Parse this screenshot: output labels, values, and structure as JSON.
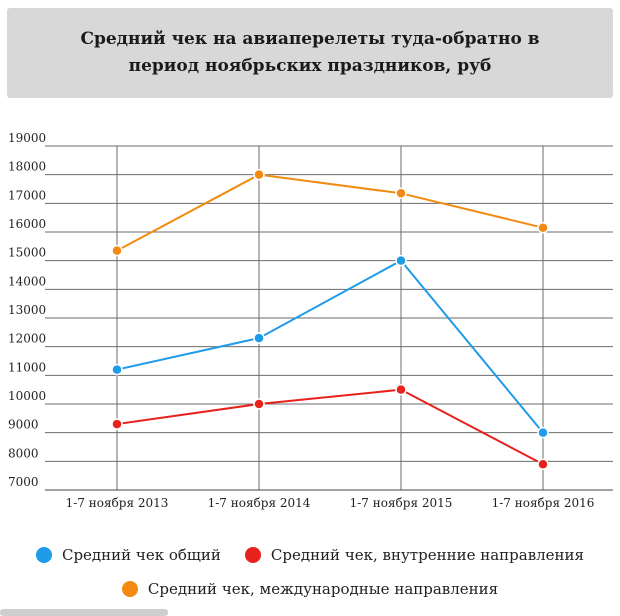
{
  "chart_data": {
    "type": "line",
    "title": "Средний чек на авиаперелеты туда-обратно в период ноябрьских праздников, руб",
    "categories": [
      "1-7 ноября 2013",
      "1-7 ноября 2014",
      "1-7 ноября 2015",
      "1-7 ноября 2016"
    ],
    "ylim": [
      7000,
      19000
    ],
    "yticks": [
      7000,
      8000,
      9000,
      10000,
      11000,
      12000,
      13000,
      14000,
      15000,
      16000,
      17000,
      18000,
      19000
    ],
    "grid": true,
    "legend_position": "bottom",
    "series": [
      {
        "name": "Средний чек общий",
        "color": "#1e9be9",
        "values": [
          11200,
          12300,
          15000,
          9000
        ]
      },
      {
        "name": "Средний чек, внутренние направления",
        "color": "#e8211d",
        "values": [
          9300,
          10000,
          10500,
          7900
        ]
      },
      {
        "name": "Средний чек, международные направления",
        "color": "#f38a12",
        "values": [
          15350,
          18000,
          17350,
          16150
        ]
      }
    ]
  }
}
